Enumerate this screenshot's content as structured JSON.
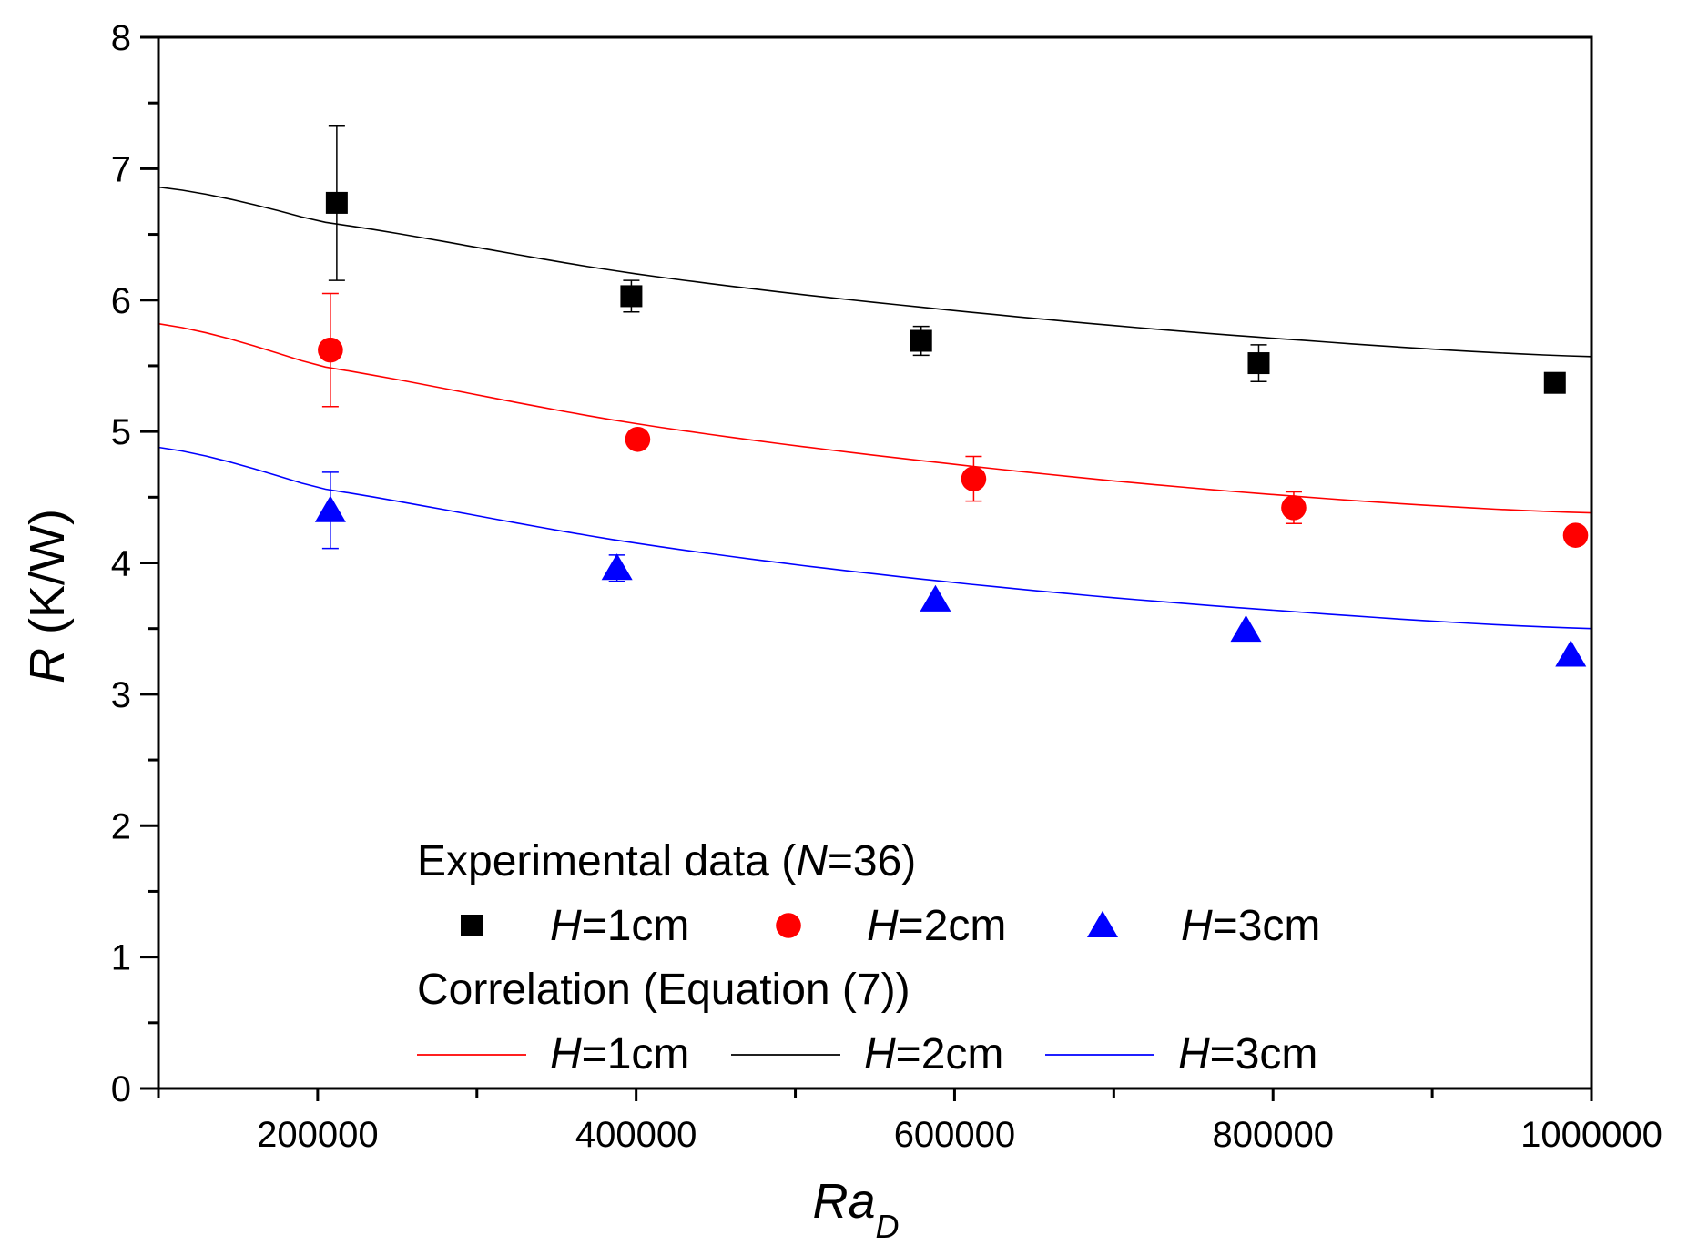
{
  "chart_data": {
    "type": "scatter",
    "xlabel_main": "Ra",
    "xlabel_sub": "D",
    "ylabel_var": "R",
    "ylabel_unit": " (K/W)",
    "xlim": [
      100000,
      1000000
    ],
    "ylim": [
      0,
      8
    ],
    "x_ticks": [
      200000,
      400000,
      600000,
      800000,
      1000000
    ],
    "x_tick_labels": [
      "200000",
      "400000",
      "600000",
      "800000",
      "1000000"
    ],
    "y_ticks": [
      0,
      1,
      2,
      3,
      4,
      5,
      6,
      7,
      8
    ],
    "y_tick_labels": [
      "0",
      "1",
      "2",
      "3",
      "4",
      "5",
      "6",
      "7",
      "8"
    ],
    "series": [
      {
        "name": "H=1cm",
        "marker": "square",
        "color": "#000000",
        "points": [
          {
            "x": 212000,
            "y": 6.74,
            "err": 0.59
          },
          {
            "x": 397000,
            "y": 6.03,
            "err": 0.12
          },
          {
            "x": 579000,
            "y": 5.69,
            "err": 0.11
          },
          {
            "x": 791000,
            "y": 5.52,
            "err": 0.14
          },
          {
            "x": 977000,
            "y": 5.37,
            "err": 0.0
          }
        ]
      },
      {
        "name": "H=2cm",
        "marker": "circle",
        "color": "#ff0000",
        "points": [
          {
            "x": 208000,
            "y": 5.62,
            "err": 0.43
          },
          {
            "x": 401000,
            "y": 4.94,
            "err": 0.0
          },
          {
            "x": 612000,
            "y": 4.64,
            "err": 0.17
          },
          {
            "x": 813000,
            "y": 4.42,
            "err": 0.12
          },
          {
            "x": 990000,
            "y": 4.21,
            "err": 0.0
          }
        ]
      },
      {
        "name": "H=3cm",
        "marker": "triangle",
        "color": "#0000ff",
        "points": [
          {
            "x": 208000,
            "y": 4.4,
            "err": 0.29
          },
          {
            "x": 388000,
            "y": 3.96,
            "err": 0.1
          },
          {
            "x": 588000,
            "y": 3.72,
            "err": 0.0
          },
          {
            "x": 783000,
            "y": 3.49,
            "err": 0.0
          },
          {
            "x": 987000,
            "y": 3.3,
            "err": 0.0
          }
        ]
      }
    ],
    "correlation_curves": [
      {
        "name": "H=2cm",
        "color": "#000000",
        "x": [
          100000,
          200000,
          400000,
          600000,
          800000,
          1000000
        ],
        "y": [
          6.86,
          6.6,
          6.2,
          5.92,
          5.71,
          5.57
        ]
      },
      {
        "name": "H=1cm",
        "color": "#ff0000",
        "x": [
          100000,
          200000,
          400000,
          600000,
          800000,
          1000000
        ],
        "y": [
          5.82,
          5.5,
          5.06,
          4.75,
          4.52,
          4.38
        ]
      },
      {
        "name": "H=3cm",
        "color": "#0000ff",
        "x": [
          100000,
          200000,
          400000,
          600000,
          800000,
          1000000
        ],
        "y": [
          4.88,
          4.57,
          4.15,
          3.85,
          3.64,
          3.5
        ]
      }
    ],
    "legend": {
      "experimental_title_prefix": "Experimental data (",
      "experimental_title_var": "N",
      "experimental_title_suffix": "=36)",
      "correlation_title": "Correlation (Equation (7))",
      "marker_entries": [
        {
          "var": "H",
          "rest": "=1cm",
          "marker": "square",
          "color": "#000000"
        },
        {
          "var": "H",
          "rest": "=2cm",
          "marker": "circle",
          "color": "#ff0000"
        },
        {
          "var": "H",
          "rest": "=3cm",
          "marker": "triangle",
          "color": "#0000ff"
        }
      ],
      "line_entries": [
        {
          "var": "H",
          "rest": "=1cm",
          "color": "#ff0000"
        },
        {
          "var": "H",
          "rest": "=2cm",
          "color": "#000000"
        },
        {
          "var": "H",
          "rest": "=3cm",
          "color": "#0000ff"
        }
      ]
    }
  }
}
